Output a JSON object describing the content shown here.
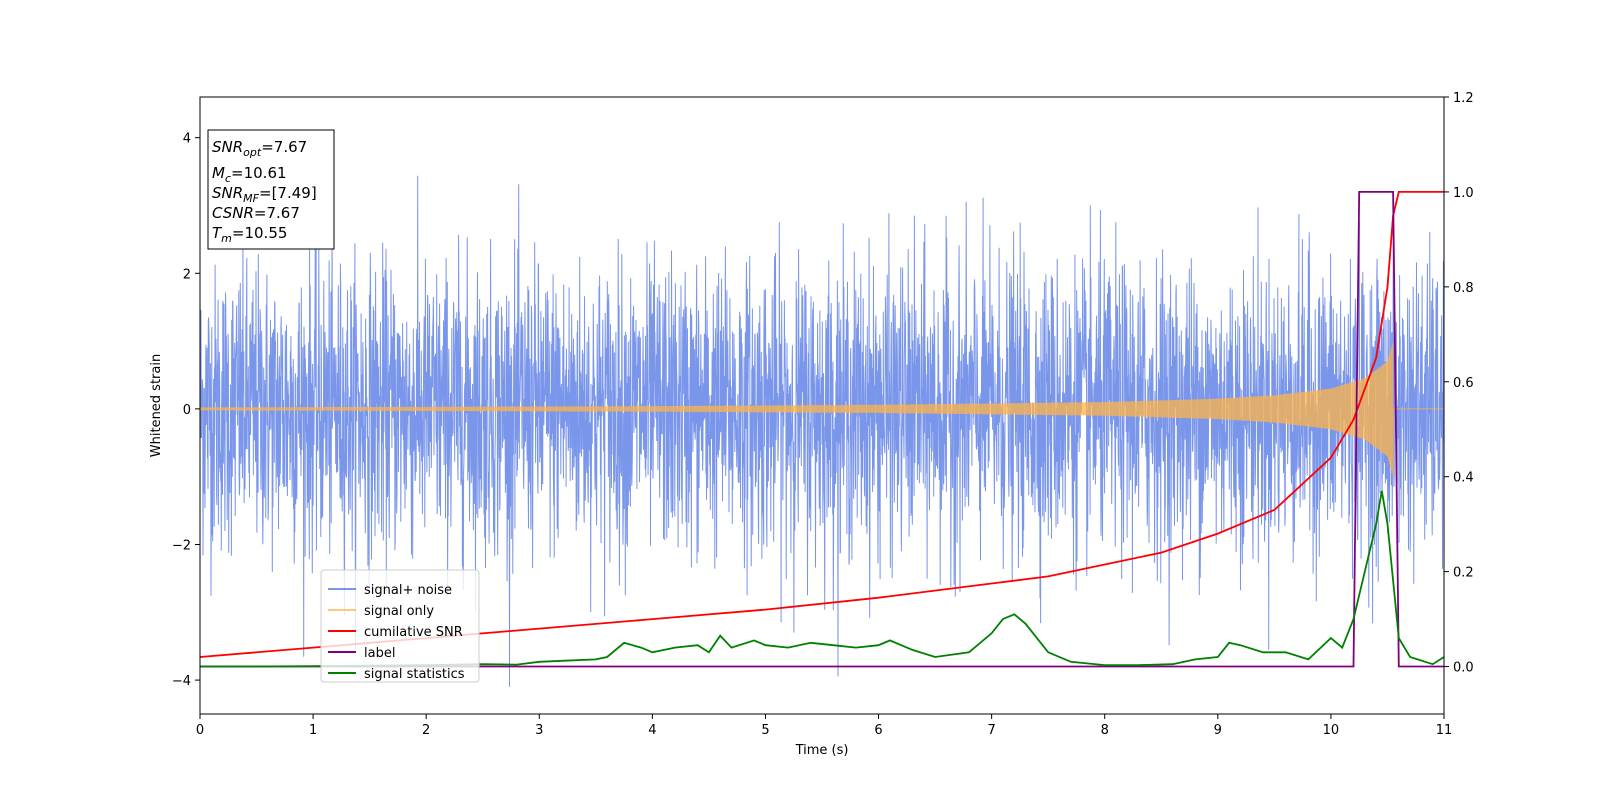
{
  "chart_data": {
    "type": "line",
    "xlabel": "Time (s)",
    "ylabel": "Whitened strain",
    "xlim": [
      0,
      11
    ],
    "ylim": [
      -4.5,
      4.6
    ],
    "y2lim": [
      -0.1,
      1.2
    ],
    "x_ticks": [
      "0",
      "1",
      "2",
      "3",
      "4",
      "5",
      "6",
      "7",
      "8",
      "9",
      "10",
      "11"
    ],
    "y_ticks": [
      "−4",
      "−2",
      "0",
      "2",
      "4"
    ],
    "y2_ticks": [
      "0.0",
      "0.2",
      "0.4",
      "0.6",
      "0.8",
      "1.0",
      "1.2"
    ],
    "legend_position": "lower-left",
    "info_box": {
      "snr_opt": "SNR_opt=7.67",
      "mc": "M_c=10.61",
      "snr_mf": "SNR_MF=[7.49]",
      "csnr": "CSNR=7.67",
      "tm": "T_m=10.55"
    },
    "series": [
      {
        "name": "signal+ noise",
        "color": "#4169e1",
        "axis": "left",
        "description_values": {
          "noise_std": 1.0,
          "peak_max": 3.7,
          "peak_min": -4.1,
          "t_end": 11
        }
      },
      {
        "name": "signal only",
        "color": "#ffb347",
        "axis": "left",
        "amplitude_envelope": {
          "t": [
            0,
            2,
            4,
            6,
            8,
            9,
            9.5,
            10,
            10.3,
            10.5,
            10.55
          ],
          "amp": [
            0.02,
            0.03,
            0.04,
            0.06,
            0.1,
            0.15,
            0.2,
            0.3,
            0.45,
            0.7,
            1.0
          ]
        },
        "merger_time": 10.55
      },
      {
        "name": "cumilative SNR",
        "color": "#ff0000",
        "axis": "right",
        "x": [
          0,
          1,
          2,
          3,
          4,
          5,
          6,
          7,
          7.5,
          8,
          8.5,
          9,
          9.5,
          10,
          10.2,
          10.4,
          10.5,
          10.55,
          10.6,
          11
        ],
        "y": [
          0.02,
          0.04,
          0.06,
          0.08,
          0.1,
          0.12,
          0.145,
          0.175,
          0.19,
          0.215,
          0.24,
          0.28,
          0.33,
          0.44,
          0.52,
          0.65,
          0.8,
          0.95,
          1.0,
          1.0
        ]
      },
      {
        "name": "label",
        "color": "#800080",
        "axis": "right",
        "x": [
          0,
          10.2,
          10.25,
          10.55,
          10.6,
          11
        ],
        "y": [
          0,
          0,
          1,
          1,
          0,
          0
        ]
      },
      {
        "name": "signal statistics",
        "color": "#008000",
        "axis": "right",
        "x": [
          0,
          0.5,
          1,
          1.5,
          2,
          2.5,
          2.8,
          3,
          3.2,
          3.5,
          3.6,
          3.75,
          3.9,
          4.0,
          4.2,
          4.4,
          4.5,
          4.6,
          4.7,
          4.9,
          5.0,
          5.2,
          5.4,
          5.6,
          5.8,
          6.0,
          6.1,
          6.3,
          6.5,
          6.8,
          7.0,
          7.1,
          7.2,
          7.3,
          7.5,
          7.7,
          8.0,
          8.3,
          8.6,
          8.8,
          9.0,
          9.1,
          9.2,
          9.4,
          9.6,
          9.8,
          10.0,
          10.1,
          10.2,
          10.3,
          10.4,
          10.45,
          10.5,
          10.6,
          10.7,
          10.9,
          11
        ],
        "y": [
          0.0,
          0.0,
          0.001,
          0.002,
          0.003,
          0.005,
          0.004,
          0.01,
          0.012,
          0.015,
          0.02,
          0.05,
          0.04,
          0.03,
          0.04,
          0.045,
          0.03,
          0.065,
          0.04,
          0.055,
          0.045,
          0.04,
          0.05,
          0.045,
          0.04,
          0.045,
          0.055,
          0.035,
          0.02,
          0.03,
          0.07,
          0.1,
          0.11,
          0.09,
          0.03,
          0.01,
          0.003,
          0.003,
          0.005,
          0.015,
          0.02,
          0.05,
          0.045,
          0.03,
          0.03,
          0.015,
          0.06,
          0.04,
          0.1,
          0.2,
          0.3,
          0.37,
          0.3,
          0.06,
          0.02,
          0.005,
          0.02
        ]
      }
    ]
  }
}
